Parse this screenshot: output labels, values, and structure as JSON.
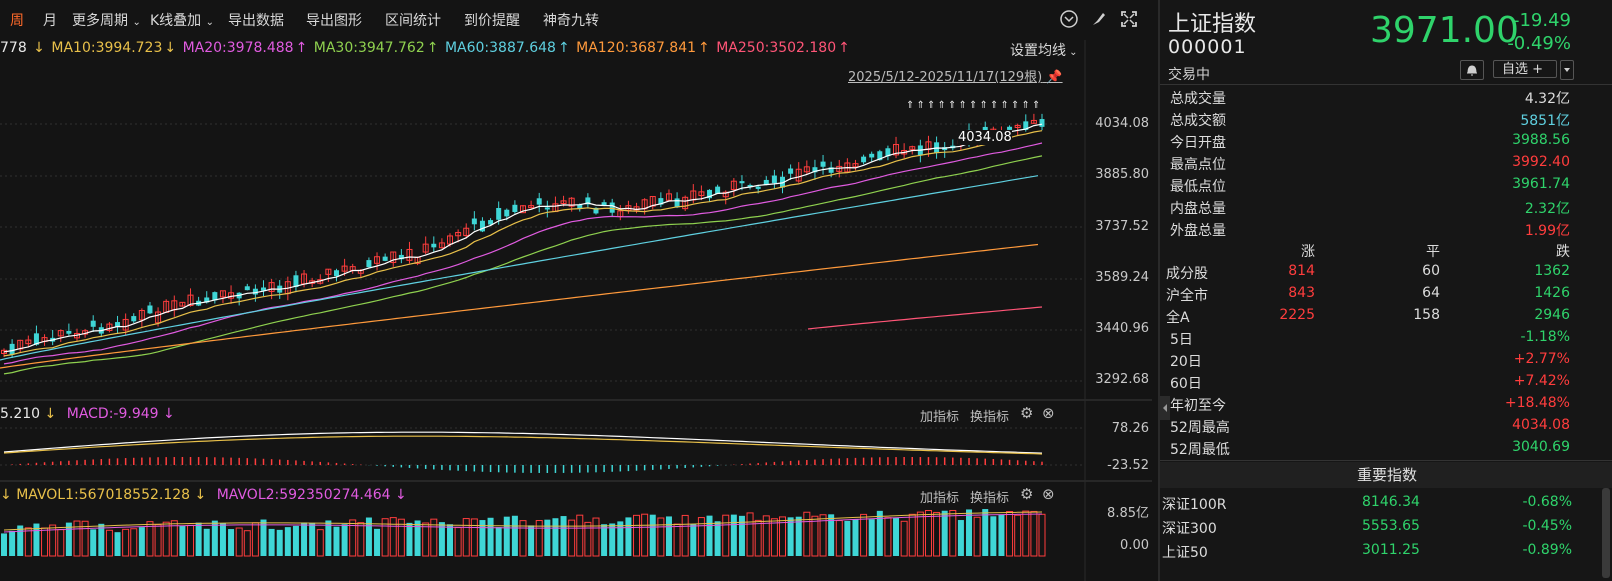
{
  "toolbar": {
    "items": [
      "周",
      "月",
      "更多周期",
      "K线叠加",
      "导出数据",
      "导出图形",
      "区间统计",
      "到价提醒",
      "神奇九转"
    ],
    "active": 0
  },
  "ma_legend": [
    {
      "text": "778",
      "color": "#e8e8e8"
    },
    {
      "text": "MA10:3994.723",
      "color": "#e8c04a"
    },
    {
      "text": "MA20:3978.488",
      "color": "#e05be0"
    },
    {
      "text": "MA30:3947.762",
      "color": "#8fd14f"
    },
    {
      "text": "MA60:3887.648",
      "color": "#5fd0e0"
    },
    {
      "text": "MA120:3687.841",
      "color": "#ff9a3c"
    },
    {
      "text": "MA250:3502.180",
      "color": "#ff5577"
    }
  ],
  "ma_setting": "设置均线",
  "date_range": "2025/5/12-2025/11/17(129根)",
  "price_axis": [
    "4034.08",
    "3885.80",
    "3737.52",
    "3589.24",
    "3440.96",
    "3292.68"
  ],
  "peak_label": "4034.08",
  "macd": {
    "legend": [
      {
        "text": "5.210",
        "color": "#e8e8e8"
      },
      {
        "text": "MACD:-9.949",
        "color": "#e05be0"
      }
    ],
    "axis": [
      "78.26",
      "-23.52"
    ]
  },
  "vol": {
    "legend": [
      {
        "text": "MAVOL1:567018552.128",
        "color": "#e8c04a"
      },
      {
        "text": "MAVOL2:592350274.464",
        "color": "#e05be0"
      }
    ],
    "axis": [
      "8.85亿",
      "0.00"
    ]
  },
  "add_indicator": "加指标",
  "switch_indicator": "换指标",
  "stock": {
    "name": "上证指数",
    "code": "000001",
    "status": "交易中",
    "price": "3971.00",
    "change": "-19.49",
    "change_pct": "-0.49%",
    "watch": "自选 +"
  },
  "stats": [
    {
      "k": "总成交量",
      "v": "4.32亿",
      "color": "#dcdcdc"
    },
    {
      "k": "总成交额",
      "v": "5851亿",
      "color": "#5fd0e0"
    },
    {
      "k": "今日开盘",
      "v": "3988.56",
      "color": "#2fd36b"
    },
    {
      "k": "最高点位",
      "v": "3992.40",
      "color": "#ff3d3d"
    },
    {
      "k": "最低点位",
      "v": "3961.74",
      "color": "#2fd36b"
    },
    {
      "k": "内盘总量",
      "v": "2.32亿",
      "color": "#2fd36b"
    },
    {
      "k": "外盘总量",
      "v": "1.99亿",
      "color": "#ff3d3d"
    }
  ],
  "market_head": {
    "up": "涨",
    "flat": "平",
    "down": "跌"
  },
  "market": [
    {
      "k": "成分股",
      "up": "814",
      "flat": "60",
      "down": "1362"
    },
    {
      "k": "沪全市",
      "up": "843",
      "flat": "64",
      "down": "1426"
    },
    {
      "k": "全A",
      "up": "2225",
      "flat": "158",
      "down": "2946"
    }
  ],
  "periods": [
    {
      "k": "5日",
      "v": "-1.18%",
      "color": "#2fd36b"
    },
    {
      "k": "20日",
      "v": "+2.77%",
      "color": "#ff3d3d"
    },
    {
      "k": "60日",
      "v": "+7.42%",
      "color": "#ff3d3d"
    },
    {
      "k": "年初至今",
      "v": "+18.48%",
      "color": "#ff3d3d"
    },
    {
      "k": "52周最高",
      "v": "4034.08",
      "color": "#ff3d3d"
    },
    {
      "k": "52周最低",
      "v": "3040.69",
      "color": "#2fd36b"
    }
  ],
  "important_title": "重要指数",
  "indices": [
    {
      "k": "深证100R",
      "p": "8146.34",
      "c": "-0.68%"
    },
    {
      "k": "深证300",
      "p": "5553.65",
      "c": "-0.45%"
    },
    {
      "k": "上证50",
      "p": "3011.25",
      "c": "-0.89%"
    }
  ],
  "colors": {
    "up": "#ff3d3d",
    "down": "#2fd36b",
    "cyan": "#3fd6d6"
  }
}
